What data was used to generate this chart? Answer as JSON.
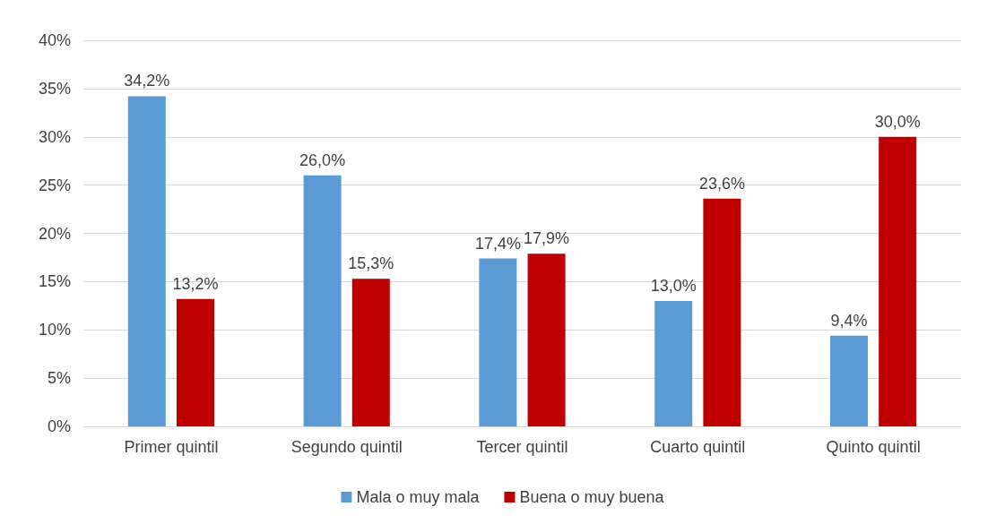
{
  "chart_data": {
    "type": "bar",
    "categories": [
      "Primer quintil",
      "Segundo quintil",
      "Tercer quintil",
      "Cuarto quintil",
      "Quinto quintil"
    ],
    "series": [
      {
        "name": "Mala o muy mala",
        "color": "#5b9bd5",
        "values": [
          34.2,
          26.0,
          17.4,
          13.0,
          9.4
        ],
        "value_labels": [
          "34,2%",
          "26,0%",
          "17,4%",
          "13,0%",
          "9,4%"
        ]
      },
      {
        "name": "Buena o muy buena",
        "color": "#c00000",
        "values": [
          13.2,
          15.3,
          17.9,
          23.6,
          30.0
        ],
        "value_labels": [
          "13,2%",
          "15,3%",
          "17,9%",
          "23,6%",
          "30,0%"
        ]
      }
    ],
    "ylim": [
      0,
      40
    ],
    "yticks": [
      {
        "value": 0,
        "label": "0%"
      },
      {
        "value": 5,
        "label": "5%"
      },
      {
        "value": 10,
        "label": "10%"
      },
      {
        "value": 15,
        "label": "15%"
      },
      {
        "value": 20,
        "label": "20%"
      },
      {
        "value": 25,
        "label": "25%"
      },
      {
        "value": 30,
        "label": "30%"
      },
      {
        "value": 35,
        "label": "35%"
      },
      {
        "value": 40,
        "label": "40%"
      }
    ],
    "grid": "y",
    "legend": "bottom"
  }
}
